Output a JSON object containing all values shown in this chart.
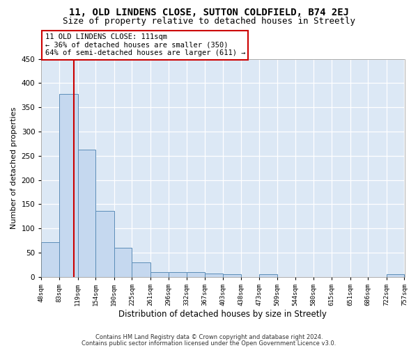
{
  "title1": "11, OLD LINDENS CLOSE, SUTTON COLDFIELD, B74 2EJ",
  "title2": "Size of property relative to detached houses in Streetly",
  "xlabel": "Distribution of detached houses by size in Streetly",
  "ylabel": "Number of detached properties",
  "bins": [
    48,
    83,
    119,
    154,
    190,
    225,
    261,
    296,
    332,
    367,
    403,
    438,
    473,
    509,
    544,
    580,
    615,
    651,
    686,
    722,
    757
  ],
  "bar_heights": [
    72,
    378,
    263,
    136,
    60,
    29,
    10,
    9,
    10,
    6,
    5,
    0,
    5,
    0,
    0,
    0,
    0,
    0,
    0,
    5
  ],
  "bar_color": "#c5d8ef",
  "bar_edge_color": "#5b8db8",
  "vline_x": 111,
  "vline_color": "#cc0000",
  "annotation_line1": "11 OLD LINDENS CLOSE: 111sqm",
  "annotation_line2": "← 36% of detached houses are smaller (350)",
  "annotation_line3": "64% of semi-detached houses are larger (611) →",
  "footer1": "Contains HM Land Registry data © Crown copyright and database right 2024.",
  "footer2": "Contains public sector information licensed under the Open Government Licence v3.0.",
  "ylim": [
    0,
    450
  ],
  "yticks": [
    0,
    50,
    100,
    150,
    200,
    250,
    300,
    350,
    400,
    450
  ],
  "tick_labels": [
    "48sqm",
    "83sqm",
    "119sqm",
    "154sqm",
    "190sqm",
    "225sqm",
    "261sqm",
    "296sqm",
    "332sqm",
    "367sqm",
    "403sqm",
    "438sqm",
    "473sqm",
    "509sqm",
    "544sqm",
    "580sqm",
    "615sqm",
    "651sqm",
    "686sqm",
    "722sqm",
    "757sqm"
  ],
  "background_color": "#ffffff",
  "axes_bg_color": "#dce8f5",
  "title1_fontsize": 10,
  "title2_fontsize": 9,
  "ylabel_fontsize": 8,
  "xlabel_fontsize": 8.5,
  "tick_fontsize": 6.5,
  "ytick_fontsize": 7.5,
  "ann_fontsize": 7.5,
  "footer_fontsize": 6
}
